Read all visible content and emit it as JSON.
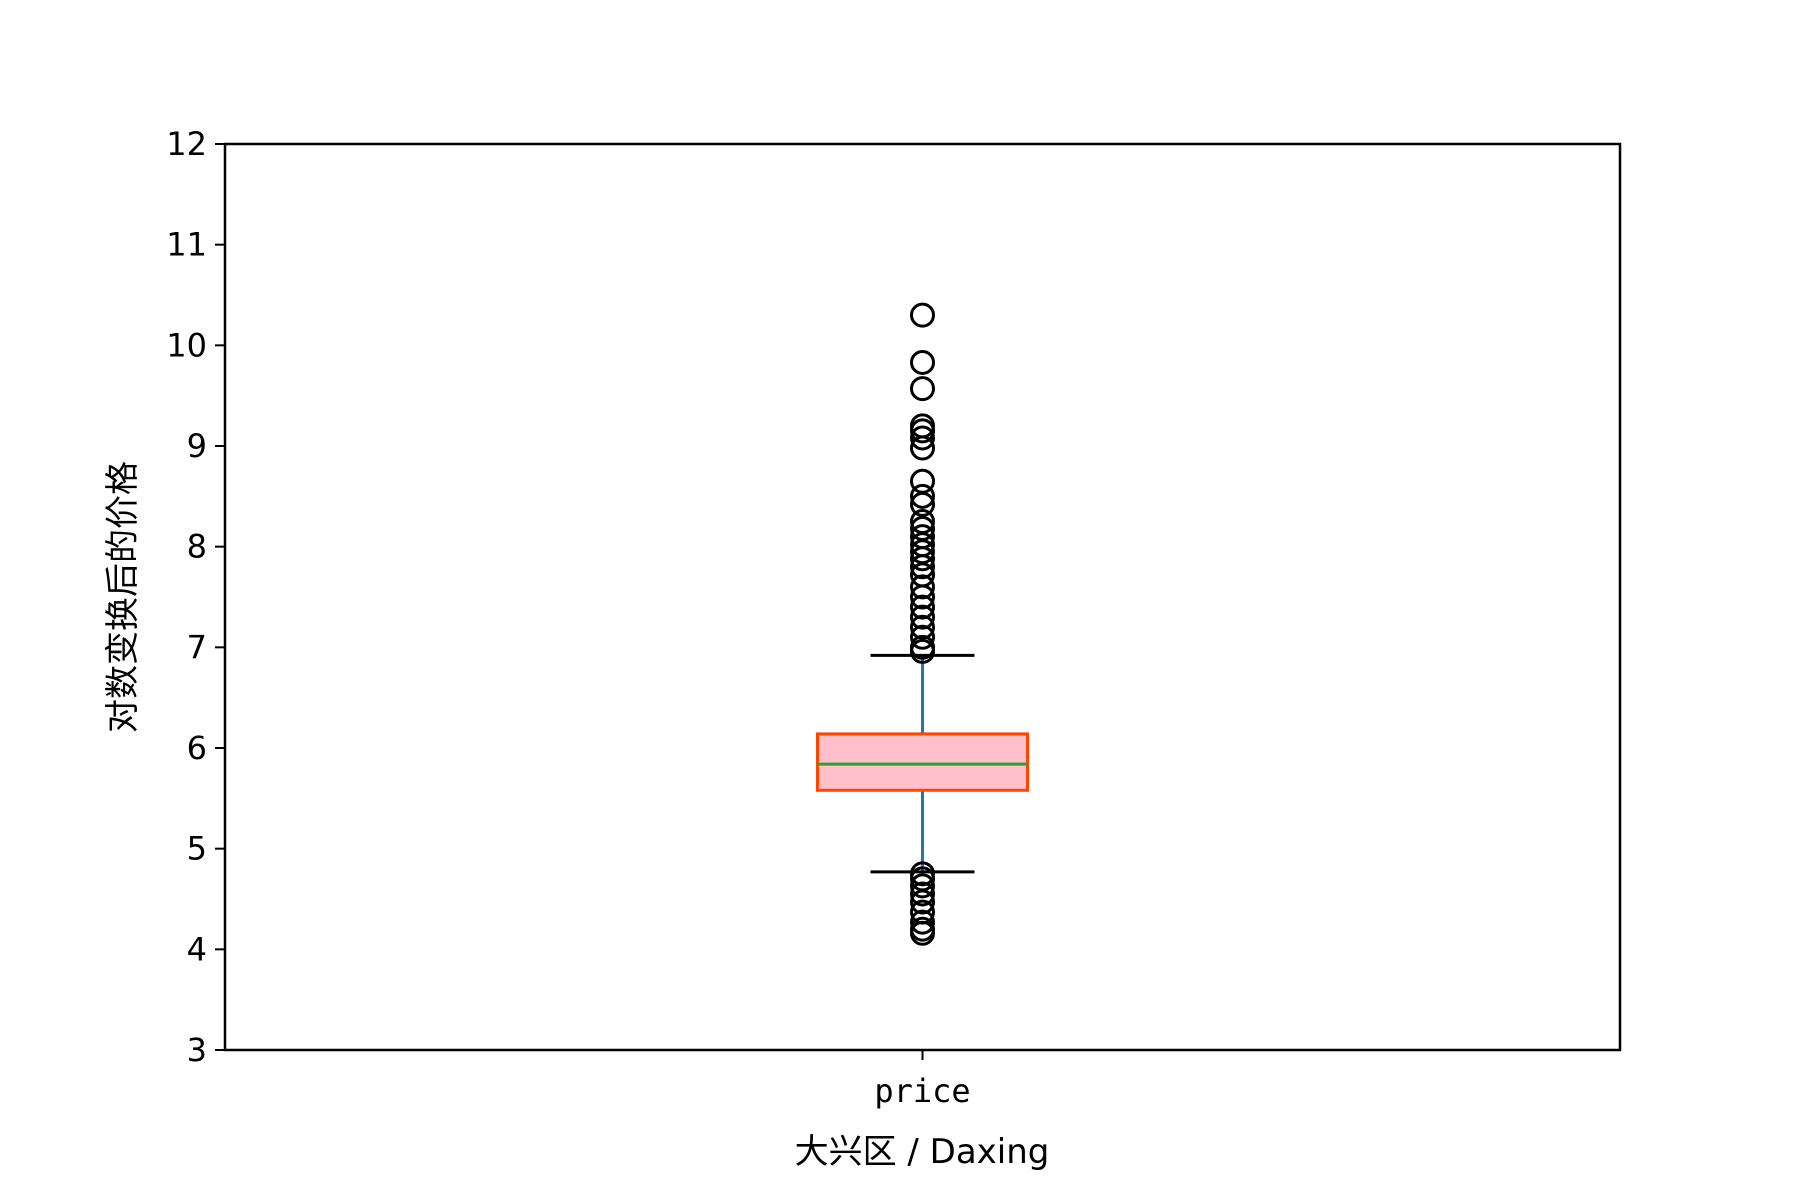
{
  "chart_data": {
    "type": "box",
    "categories": [
      "price"
    ],
    "xlabel": "大兴区 / Daxing",
    "ylabel": "对数变换后的价格",
    "ylim": [
      3,
      12
    ],
    "yticks": [
      3,
      4,
      5,
      6,
      7,
      8,
      9,
      10,
      11,
      12
    ],
    "grid": false,
    "boxes": [
      {
        "category": "price",
        "whisker_low": 4.77,
        "q1": 5.58,
        "median": 5.84,
        "q3": 6.14,
        "whisker_high": 6.92,
        "outliers": [
          10.3,
          9.83,
          9.57,
          9.2,
          9.15,
          9.08,
          8.98,
          8.65,
          8.5,
          8.42,
          8.25,
          8.18,
          8.1,
          8.02,
          7.95,
          7.88,
          7.8,
          7.72,
          7.6,
          7.5,
          7.4,
          7.3,
          7.2,
          7.1,
          7.0,
          6.96,
          4.75,
          4.7,
          4.63,
          4.55,
          4.47,
          4.37,
          4.27,
          4.2,
          4.16
        ]
      }
    ],
    "colors": {
      "box_fill": "#ffc0cb",
      "box_edge": "#ff4500",
      "median": "#2ca02c",
      "whisker": "#1f77b4",
      "cap": "#000000",
      "flier_edge": "#000000"
    }
  }
}
